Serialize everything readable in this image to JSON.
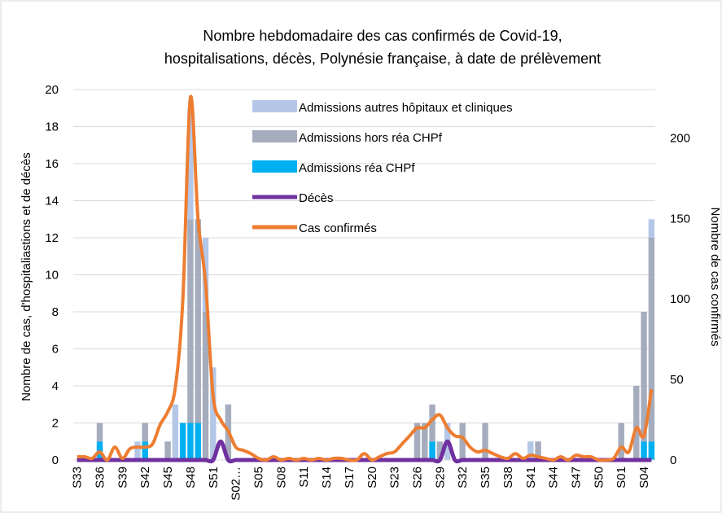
{
  "chart_data": {
    "type": "bar-line",
    "title": [
      "Nombre hebdomadaire des cas confirmés de Covid-19,",
      "hospitalisations, décès, Polynésie française, à date de prélèvement"
    ],
    "y_label": "Nombre de cas, d'hospitaliastions et de décès",
    "y2_label": "Nombre de cas confirmés",
    "stacked": true,
    "grid": true,
    "legend": "top-center",
    "categories": [
      "S33",
      null,
      null,
      "S36",
      null,
      null,
      "S39",
      null,
      null,
      "S42",
      null,
      null,
      "S45",
      null,
      null,
      "S48",
      null,
      null,
      "S51",
      null,
      null,
      "S02…",
      null,
      null,
      "S05",
      null,
      null,
      "S08",
      null,
      null,
      "S11",
      null,
      null,
      "S14",
      null,
      null,
      "S17",
      null,
      null,
      "S20",
      null,
      null,
      "S23",
      null,
      null,
      "S26",
      null,
      null,
      "S29",
      null,
      null,
      "S32",
      null,
      null,
      "S35",
      null,
      null,
      "S38",
      null,
      null,
      "S41",
      null,
      null,
      "S44",
      null,
      null,
      "S47",
      null,
      null,
      "S50",
      null,
      null,
      "S01",
      null,
      null,
      "S04",
      null
    ],
    "ylim": [
      0,
      20
    ],
    "yticks": [
      0,
      2,
      4,
      6,
      8,
      10,
      12,
      14,
      16,
      18,
      20
    ],
    "y2lim": [
      0,
      230
    ],
    "y2ticks": [
      0,
      50,
      100,
      150,
      200
    ],
    "series": [
      {
        "name": "Admissions autres hôpitaux et cliniques",
        "type": "bar",
        "color": "#b4c7e7",
        "values": [
          0,
          0,
          0,
          0,
          0,
          0,
          0,
          0,
          1,
          0,
          0,
          0,
          0,
          3,
          0,
          6,
          0,
          4,
          5,
          0,
          0,
          0,
          0,
          0,
          0,
          0,
          0,
          0,
          0,
          0,
          0,
          0,
          0,
          0,
          0,
          0,
          0,
          0,
          0,
          0,
          0,
          0,
          0,
          0,
          0,
          0,
          0,
          0,
          0,
          2,
          0,
          0,
          0,
          0,
          0,
          0,
          0,
          0,
          0,
          0,
          1,
          0,
          0,
          0,
          0,
          0,
          0,
          0,
          0,
          0,
          0,
          0,
          0,
          0,
          0,
          0,
          1
        ]
      },
      {
        "name": "Admissions hors réa CHPf",
        "type": "bar",
        "color": "#a5acbd",
        "values": [
          0,
          0,
          0,
          1,
          0,
          0,
          0,
          0,
          0,
          1,
          0,
          0,
          1,
          0,
          0,
          11,
          11,
          8,
          0,
          0,
          3,
          0,
          0,
          0,
          0,
          0,
          0,
          0,
          0,
          0,
          0,
          0,
          0,
          0,
          0,
          0,
          0,
          0,
          0,
          0,
          0,
          0,
          0,
          0,
          0,
          2,
          2,
          2,
          1,
          0,
          0,
          2,
          0,
          0,
          2,
          0,
          0,
          0,
          0,
          0,
          0,
          1,
          0,
          0,
          0,
          0,
          0,
          0,
          0,
          0,
          0,
          0,
          2,
          0,
          4,
          7,
          11
        ]
      },
      {
        "name": "Admissions réa CHPf",
        "type": "bar",
        "color": "#00b0f0",
        "values": [
          0,
          0,
          0,
          1,
          0,
          0,
          0,
          0,
          0,
          1,
          0,
          0,
          0,
          0,
          2,
          2,
          2,
          0,
          0,
          0,
          0,
          0,
          0,
          0,
          0,
          0,
          0,
          0,
          0,
          0,
          0,
          0,
          0,
          0,
          0,
          0,
          0,
          0,
          0,
          0,
          0,
          0,
          0,
          0,
          0,
          0,
          0,
          1,
          0,
          0,
          0,
          0,
          0,
          0,
          0,
          0,
          0,
          0,
          0,
          0,
          0,
          0,
          0,
          0,
          0,
          0,
          0,
          0,
          0,
          0,
          0,
          0,
          0,
          0,
          0,
          1,
          1
        ]
      },
      {
        "name": "Décès",
        "type": "line",
        "color": "#7030a0",
        "values": [
          0,
          0,
          0,
          0,
          0,
          0,
          0,
          0,
          0,
          0,
          0,
          0,
          0,
          0,
          0,
          0,
          0,
          0,
          0,
          1,
          0,
          0,
          0,
          0,
          0,
          0,
          0,
          0,
          0,
          0,
          0,
          0,
          0,
          0,
          0,
          0,
          0,
          0,
          0,
          0,
          0,
          0,
          0,
          0,
          0,
          0,
          0,
          0,
          0,
          1,
          0,
          0,
          0,
          0,
          0,
          0,
          0,
          0,
          0,
          0,
          0,
          0,
          0,
          0,
          0,
          0,
          0,
          0,
          0,
          0,
          0,
          0,
          0,
          0,
          0,
          0,
          0
        ]
      },
      {
        "name": "Cas confirmés",
        "type": "line",
        "axis": "y2",
        "color": "#ed7d31",
        "values": [
          2,
          2,
          1,
          5,
          0,
          8,
          1,
          7,
          8,
          8,
          10,
          22,
          30,
          45,
          100,
          225,
          150,
          110,
          40,
          25,
          18,
          8,
          6,
          4,
          1,
          0,
          2,
          0,
          1,
          0,
          1,
          0,
          1,
          0,
          1,
          1,
          0,
          0,
          4,
          0,
          2,
          4,
          5,
          10,
          15,
          20,
          20,
          25,
          28,
          20,
          15,
          14,
          8,
          5,
          6,
          4,
          2,
          1,
          4,
          1,
          3,
          2,
          1,
          0,
          2,
          0,
          3,
          2,
          2,
          0,
          0,
          1,
          8,
          5,
          20,
          15,
          44
        ]
      }
    ]
  }
}
